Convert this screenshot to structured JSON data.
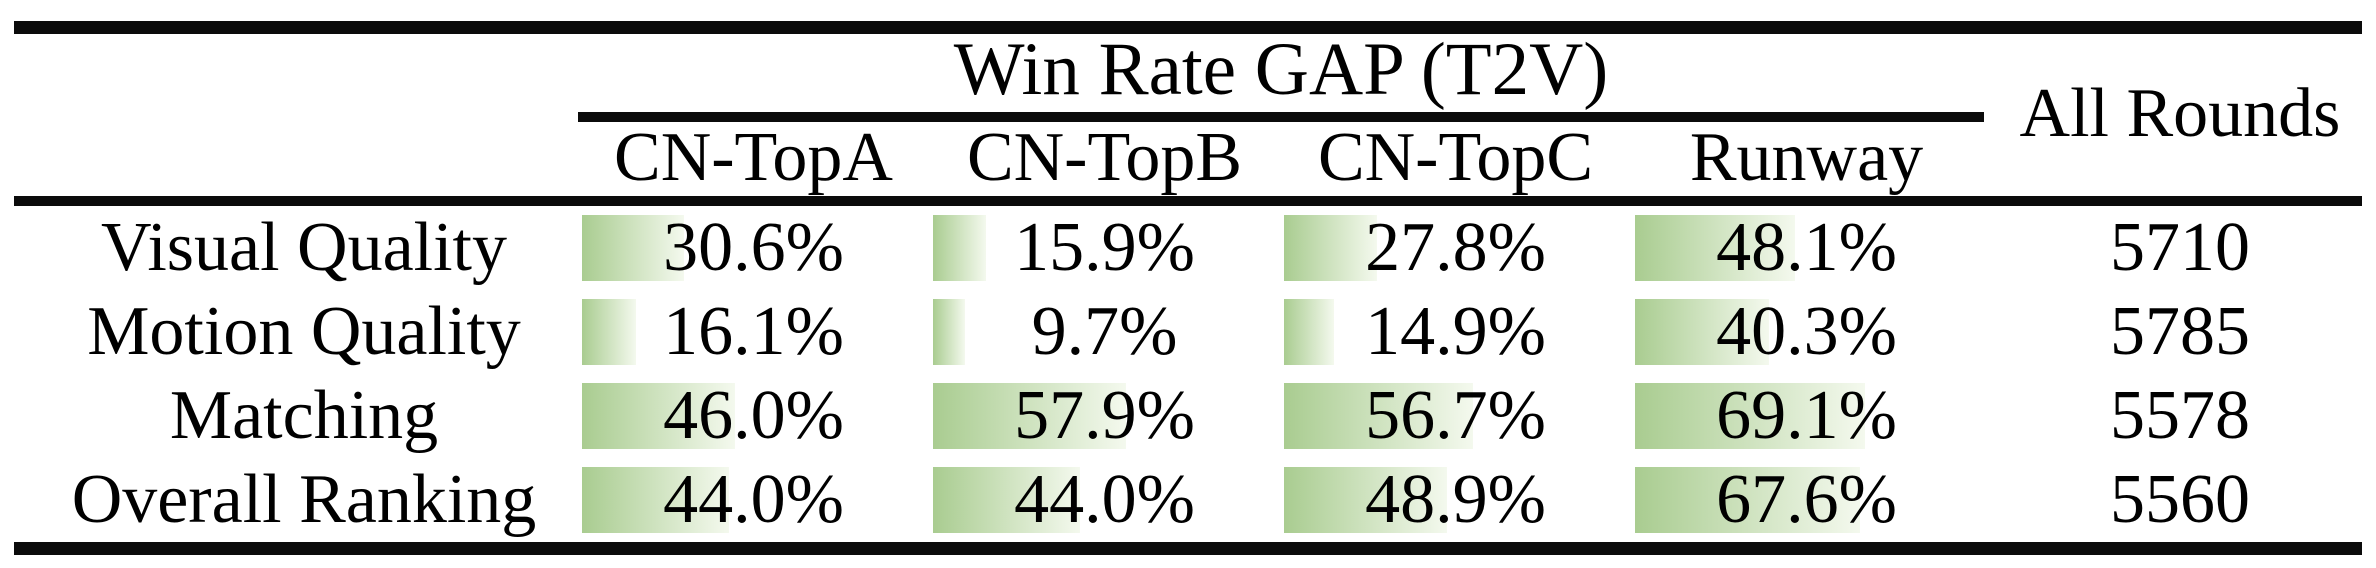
{
  "header": {
    "group_title": "Win Rate GAP (T2V)",
    "columns": [
      "CN-TopA",
      "CN-TopB",
      "CN-TopC",
      "Runway"
    ],
    "all_rounds_label": "All Rounds"
  },
  "rows": [
    {
      "label": "Visual Quality",
      "cells": [
        {
          "text": "30.6%",
          "pct": 30.6
        },
        {
          "text": "15.9%",
          "pct": 15.9
        },
        {
          "text": "27.8%",
          "pct": 27.8
        },
        {
          "text": "48.1%",
          "pct": 48.1
        }
      ],
      "rounds": "5710"
    },
    {
      "label": "Motion Quality",
      "cells": [
        {
          "text": "16.1%",
          "pct": 16.1
        },
        {
          "text": "9.7%",
          "pct": 9.7
        },
        {
          "text": "14.9%",
          "pct": 14.9
        },
        {
          "text": "40.3%",
          "pct": 40.3
        }
      ],
      "rounds": "5785"
    },
    {
      "label": "Matching",
      "cells": [
        {
          "text": "46.0%",
          "pct": 46.0
        },
        {
          "text": "57.9%",
          "pct": 57.9
        },
        {
          "text": "56.7%",
          "pct": 56.7
        },
        {
          "text": "69.1%",
          "pct": 69.1
        }
      ],
      "rounds": "5578"
    },
    {
      "label": "Overall Ranking",
      "cells": [
        {
          "text": "44.0%",
          "pct": 44.0
        },
        {
          "text": "44.0%",
          "pct": 44.0
        },
        {
          "text": "48.9%",
          "pct": 48.9
        },
        {
          "text": "67.6%",
          "pct": 67.6
        }
      ],
      "rounds": "5560"
    }
  ],
  "colors": {
    "bar_green": "#a9cc90",
    "bar_fade": "#f4f9ee",
    "rule_black": "#0b0b0b"
  },
  "chart_data": {
    "type": "table",
    "title": "Win Rate GAP (T2V)",
    "columns": [
      "CN-TopA",
      "CN-TopB",
      "CN-TopC",
      "Runway",
      "All Rounds"
    ],
    "row_headers": [
      "Visual Quality",
      "Motion Quality",
      "Matching",
      "Overall Ranking"
    ],
    "values": [
      [
        30.6,
        15.9,
        27.8,
        48.1,
        5710
      ],
      [
        16.1,
        9.7,
        14.9,
        40.3,
        5785
      ],
      [
        46.0,
        57.9,
        56.7,
        69.1,
        5578
      ],
      [
        44.0,
        44.0,
        48.9,
        67.6,
        5560
      ]
    ],
    "bar_axis_range_pct": [
      0,
      100
    ],
    "bar_style": "horizontal green gradient data bars behind percentages"
  }
}
